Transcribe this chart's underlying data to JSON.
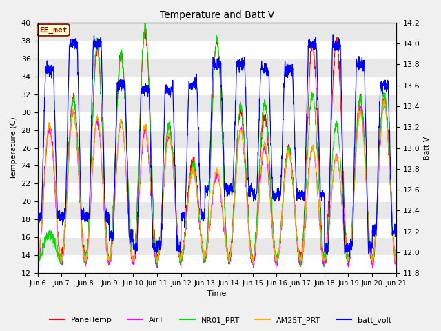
{
  "title": "Temperature and Batt V",
  "xlabel": "Time",
  "ylabel_left": "Temperature (C)",
  "ylabel_right": "Batt V",
  "annotation": "EE_met",
  "ylim_left": [
    12,
    40
  ],
  "ylim_right": [
    11.8,
    14.2
  ],
  "yticks_left": [
    12,
    14,
    16,
    18,
    20,
    22,
    24,
    26,
    28,
    30,
    32,
    34,
    36,
    38,
    40
  ],
  "yticks_right": [
    11.8,
    12.0,
    12.2,
    12.4,
    12.6,
    12.8,
    13.0,
    13.2,
    13.4,
    13.6,
    13.8,
    14.0,
    14.2
  ],
  "xtick_labels": [
    "Jun 6",
    "Jun 7",
    "Jun 8",
    "Jun 9",
    "Jun 10",
    "Jun 11",
    "Jun 12",
    "Jun 13",
    "Jun 14",
    "Jun 15",
    "Jun 16",
    "Jun 17",
    "Jun 18",
    "Jun 19",
    "Jun 20",
    "Jun 21"
  ],
  "series_colors": {
    "PanelTemp": "#ff0000",
    "AirT": "#ff00ff",
    "NR01_PRT": "#00dd00",
    "AM25T_PRT": "#ffaa00",
    "batt_volt": "#0000ff"
  },
  "legend_entries": [
    "PanelTemp",
    "AirT",
    "NR01_PRT",
    "AM25T_PRT",
    "batt_volt"
  ],
  "band_colors": [
    "#ffffff",
    "#e8e8e8"
  ],
  "n_days": 15,
  "pts_per_day": 144,
  "figsize": [
    6.4,
    4.8
  ],
  "dpi": 100
}
